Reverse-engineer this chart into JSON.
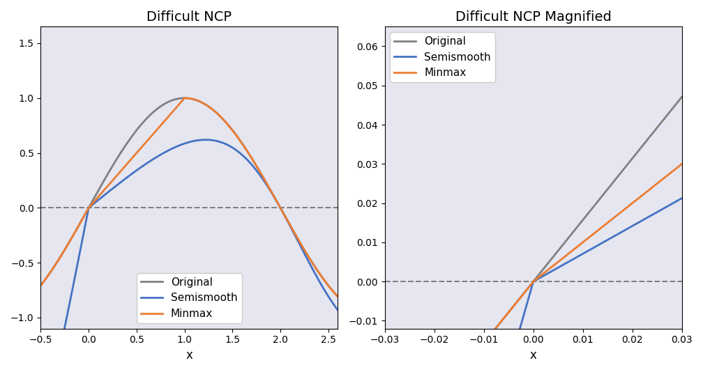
{
  "title_left": "Difficult NCP",
  "title_right": "Difficult NCP Magnified",
  "xlabel": "x",
  "legend_labels": [
    "Original",
    "Semismooth",
    "Minmax"
  ],
  "colors": {
    "original": "#808080",
    "semismooth": "#4472C4",
    "minmax": "#ED7D31"
  },
  "left_xlim": [
    -0.5,
    2.6
  ],
  "left_ylim": [
    -1.1,
    1.65
  ],
  "right_xlim": [
    -0.03,
    0.03
  ],
  "right_ylim": [
    -0.012,
    0.065
  ],
  "bg_color": "#E6E6F0",
  "dashed_color": "#808080",
  "linewidth": 2.0,
  "figsize": [
    10.08,
    5.34
  ],
  "dpi": 100
}
